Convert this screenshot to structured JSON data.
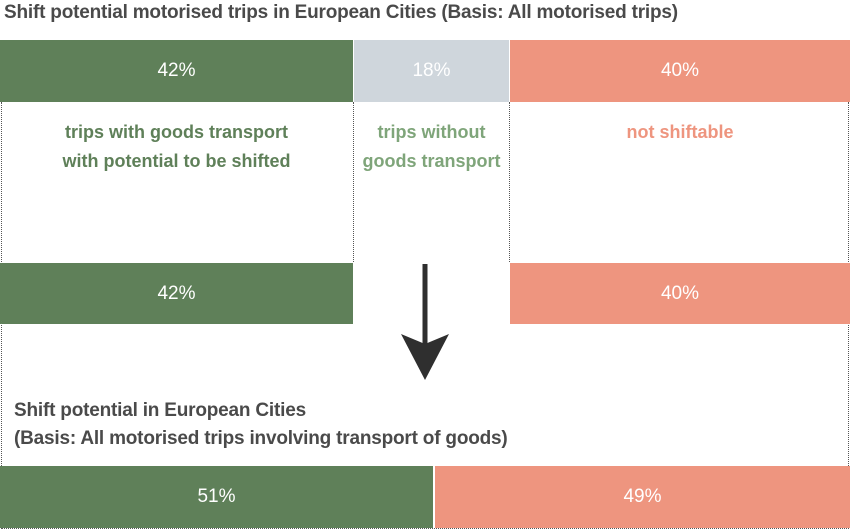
{
  "colors": {
    "green": "#5f8059",
    "grey": "#cfd6dc",
    "salmon": "#ee957f",
    "cat_without": "#7fa57a",
    "arrow": "#2f2f2f"
  },
  "icons": {
    "arrow": "arrow-down-icon"
  },
  "chart_data": [
    {
      "type": "bar",
      "title": "Shift potential motorised trips in European Cities (Basis: All motorised trips)",
      "orientation": "horizontal-stacked",
      "categories": [
        "trips with goods transport with potential to be shifted",
        "trips without goods transport",
        "not shiftable"
      ],
      "values": [
        42,
        18,
        40
      ],
      "labels": [
        "42%",
        "18%",
        "40%"
      ],
      "category_labels": {
        "shiftable": [
          "trips with goods transport",
          "with potential to be shifted"
        ],
        "without": [
          "trips without",
          "goods transport"
        ],
        "not_shiftable": [
          "not shiftable"
        ]
      }
    },
    {
      "type": "bar",
      "orientation": "horizontal-stacked",
      "values": [
        42,
        40
      ],
      "labels": [
        "42%",
        "40%"
      ]
    },
    {
      "type": "bar",
      "title": [
        "Shift potential in European Cities",
        "(Basis: All motorised trips involving transport of goods)"
      ],
      "orientation": "horizontal-stacked",
      "values": [
        51,
        49
      ],
      "labels": [
        "51%",
        "49%"
      ]
    }
  ]
}
